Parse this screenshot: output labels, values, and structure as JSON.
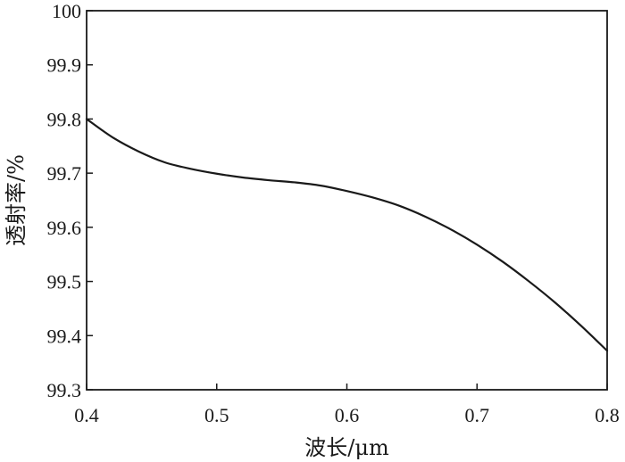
{
  "chart_data": {
    "type": "line",
    "title": "",
    "xlabel": "波长/μm",
    "ylabel": "透射率/%",
    "xlim": [
      0.4,
      0.8
    ],
    "ylim": [
      99.3,
      100
    ],
    "x_ticks": [
      "0.4",
      "0.5",
      "0.6",
      "0.7",
      "0.8"
    ],
    "y_ticks": [
      "99.3",
      "99.4",
      "99.5",
      "99.6",
      "99.7",
      "99.8",
      "99.9",
      "100"
    ],
    "grid": false,
    "legend": "none",
    "line_color": "#1a1a1a",
    "series": [
      {
        "x": [
          0.4,
          0.42,
          0.44,
          0.46,
          0.48,
          0.5,
          0.52,
          0.54,
          0.56,
          0.58,
          0.6,
          0.62,
          0.64,
          0.66,
          0.68,
          0.7,
          0.72,
          0.74,
          0.76,
          0.78,
          0.8
        ],
        "values": [
          99.8,
          99.766,
          99.74,
          99.72,
          99.708,
          99.699,
          99.692,
          99.687,
          99.683,
          99.677,
          99.667,
          99.655,
          99.64,
          99.62,
          99.596,
          99.568,
          99.536,
          99.5,
          99.461,
          99.418,
          99.372
        ]
      }
    ]
  }
}
